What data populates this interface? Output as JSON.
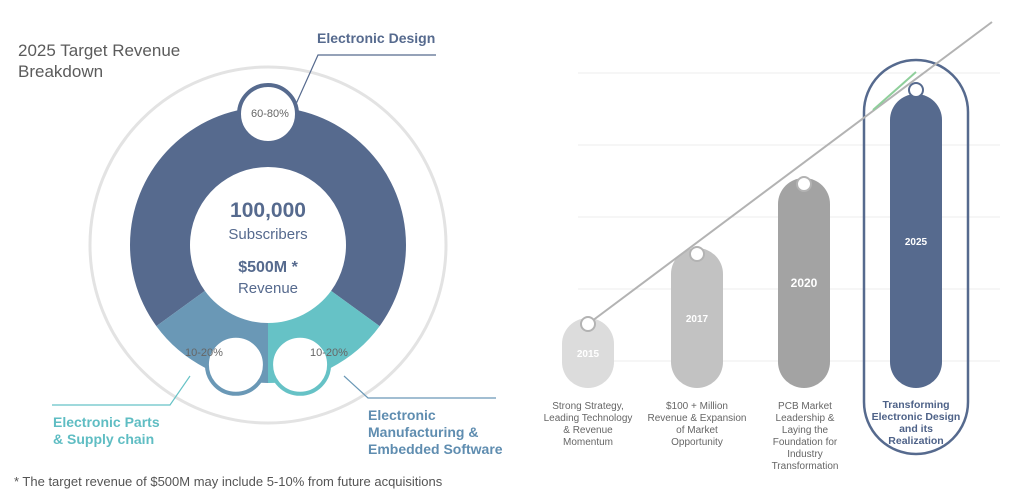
{
  "left_chart": {
    "title": "2025 Target Revenue\nBreakdown",
    "center": {
      "subscribers_value": "100,000",
      "subscribers_label": "Subscribers",
      "revenue_value": "$500M *",
      "revenue_label": "Revenue"
    },
    "footnote": "* The target revenue of $500M may include 5-10% from future acquisitions"
  },
  "right_chart": {
    "milestones": [
      {
        "year": "2015",
        "description": "Strong Strategy,\nLeading Technology\n& Revenue\nMomentum"
      },
      {
        "year": "2017",
        "description": "$100 + Million\nRevenue & Expansion\nof Market\nOpportunity"
      },
      {
        "year": "2020",
        "description": "PCB Market\nLeadership &\nLaying the\nFoundation for\nIndustry\nTransformation"
      },
      {
        "year": "2025",
        "description": "Transforming\nElectronic Design\nand its\nRealization"
      }
    ]
  },
  "chart_data": [
    {
      "type": "pie",
      "title": "2025 Target Revenue\nBreakdown",
      "slices": [
        {
          "name": "Electronic Design",
          "label": "60-80%",
          "value": 70,
          "color": "#566a8e"
        },
        {
          "name": "Electronic Parts\n& Supply chain",
          "label": "10-20%",
          "value": 15,
          "color": "#66c2c6"
        },
        {
          "name": "Electronic\nManufacturing &\nEmbedded Software",
          "label": "10-20%",
          "value": 15,
          "color": "#6a98b6"
        }
      ]
    },
    {
      "type": "bar",
      "categories": [
        "2015",
        "2017",
        "2020",
        "2025"
      ],
      "values": [
        1,
        2,
        3,
        4.2
      ],
      "colors": [
        "#dcdcdc",
        "#c2c2c2",
        "#a3a3a3",
        "#566a8e"
      ],
      "grid": true
    }
  ]
}
